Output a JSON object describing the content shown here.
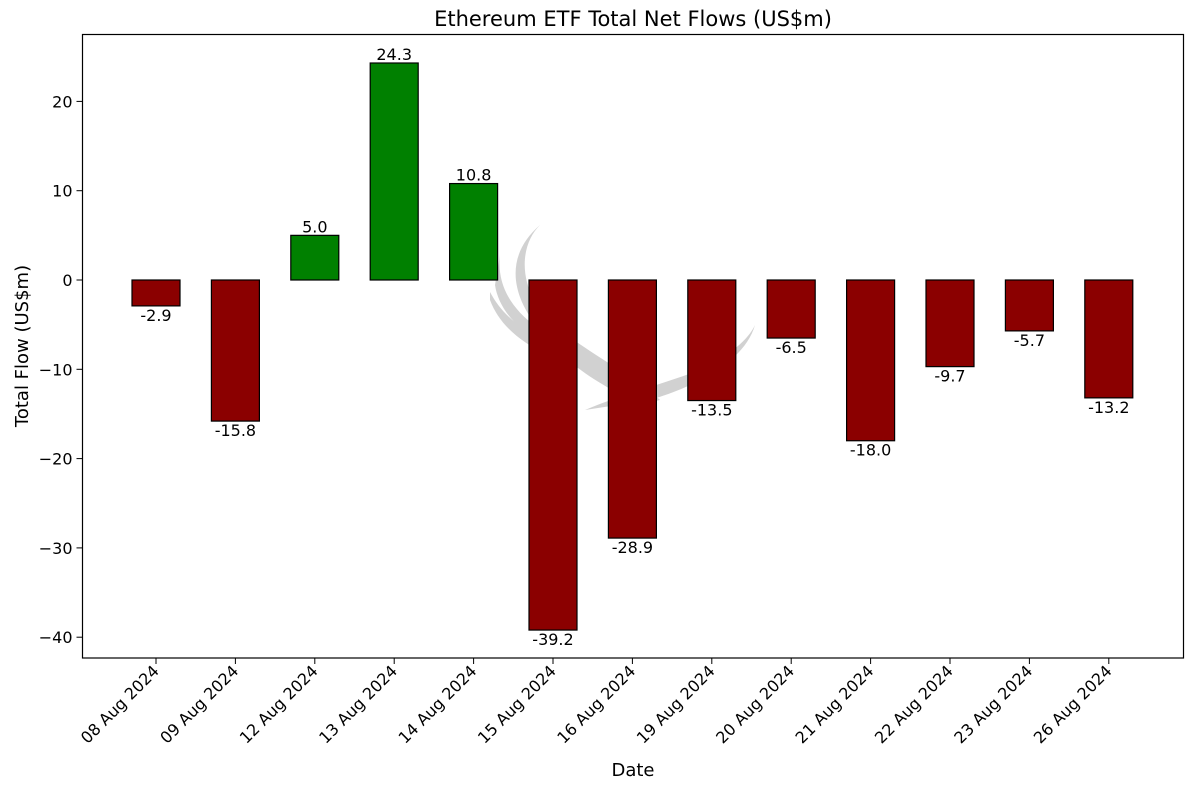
{
  "chart_data": {
    "type": "bar",
    "title": "Ethereum ETF Total Net Flows (US$m)",
    "xlabel": "Date",
    "ylabel": "Total Flow (US$m)",
    "categories": [
      "08 Aug 2024",
      "09 Aug 2024",
      "12 Aug 2024",
      "13 Aug 2024",
      "14 Aug 2024",
      "15 Aug 2024",
      "16 Aug 2024",
      "19 Aug 2024",
      "20 Aug 2024",
      "21 Aug 2024",
      "22 Aug 2024",
      "23 Aug 2024",
      "26 Aug 2024"
    ],
    "values": [
      -2.9,
      -15.8,
      5.0,
      24.3,
      10.8,
      -39.2,
      -28.9,
      -13.5,
      -6.5,
      -18.0,
      -9.7,
      -5.7,
      -13.2
    ],
    "value_labels": [
      "-2.9",
      "-15.8",
      "5.0",
      "24.3",
      "10.8",
      "-39.2",
      "-28.9",
      "-13.5",
      "-6.5",
      "-18.0",
      "-9.7",
      "-5.7",
      "-13.2"
    ],
    "ylim": [
      -42.4,
      27.5
    ],
    "yticks": [
      20,
      10,
      0,
      -10,
      -20,
      -30,
      -40
    ],
    "ytick_labels": [
      "20",
      "10",
      "0",
      "−10",
      "−20",
      "−30",
      "−40"
    ],
    "grid": false,
    "legend": null,
    "colors": {
      "positive": "#008000",
      "negative": "#8b0000",
      "edge": "#000000",
      "watermark": "#b4b4b4"
    }
  }
}
